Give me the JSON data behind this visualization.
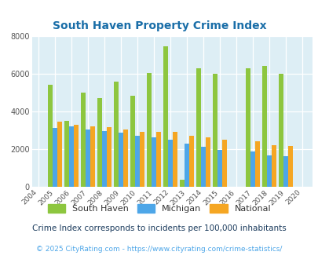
{
  "title": "South Haven Property Crime Index",
  "years": [
    2004,
    2005,
    2006,
    2007,
    2008,
    2009,
    2010,
    2011,
    2012,
    2013,
    2014,
    2015,
    2016,
    2017,
    2018,
    2019,
    2020
  ],
  "south_haven": [
    null,
    5400,
    3500,
    5000,
    4700,
    5600,
    4850,
    6050,
    7450,
    350,
    6300,
    6000,
    null,
    6300,
    6400,
    6000,
    null
  ],
  "michigan": [
    null,
    3100,
    3200,
    3050,
    2950,
    2850,
    2700,
    2600,
    2500,
    2300,
    2100,
    1950,
    null,
    1850,
    1650,
    1600,
    null
  ],
  "national": [
    null,
    3450,
    3300,
    3200,
    3150,
    3050,
    2900,
    2900,
    2900,
    2700,
    2600,
    2500,
    null,
    2400,
    2200,
    2150,
    null
  ],
  "south_haven_color": "#8dc63f",
  "michigan_color": "#4da6e8",
  "national_color": "#f5a623",
  "bg_color": "#ddeef5",
  "ylim": [
    0,
    8000
  ],
  "yticks": [
    0,
    2000,
    4000,
    6000,
    8000
  ],
  "footnote1": "Crime Index corresponds to incidents per 100,000 inhabitants",
  "footnote2": "© 2025 CityRating.com - https://www.cityrating.com/crime-statistics/",
  "legend_labels": [
    "South Haven",
    "Michigan",
    "National"
  ],
  "bar_width": 0.28,
  "title_color": "#1a6ea8",
  "footnote1_color": "#1a3a5c",
  "footnote2_color": "#4da6e8"
}
